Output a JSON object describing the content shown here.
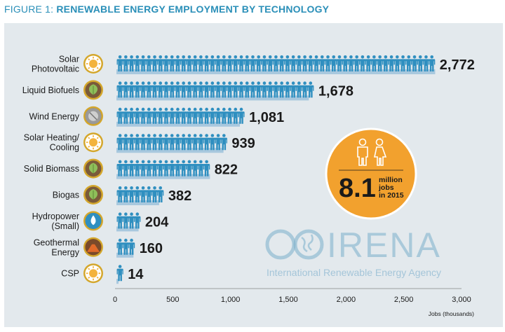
{
  "figure": {
    "title_prefix": "FIGURE 1:",
    "title_main": "RENEWABLE ENERGY EMPLOYMENT BY TECHNOLOGY"
  },
  "chart_data": {
    "type": "bar",
    "orientation": "horizontal",
    "title": "RENEWABLE ENERGY EMPLOYMENT BY TECHNOLOGY",
    "categories": [
      [
        "Solar",
        "Photovoltaic"
      ],
      [
        "Liquid Biofuels"
      ],
      [
        "Wind Energy"
      ],
      [
        "Solar Heating/",
        "Cooling"
      ],
      [
        "Solid Biomass"
      ],
      [
        "Biogas"
      ],
      [
        "Hydropower",
        "(Small)"
      ],
      [
        "Geothermal",
        "Energy"
      ],
      [
        "CSP"
      ]
    ],
    "icons": [
      "sun-icon",
      "leaf-icon",
      "wind-turbine-icon",
      "sun-icon",
      "leaf-icon",
      "leaf-icon",
      "water-drop-icon",
      "volcano-icon",
      "sun-icon"
    ],
    "values": [
      2772,
      1678,
      1081,
      939,
      822,
      382,
      204,
      160,
      14
    ],
    "value_labels": [
      "2,772",
      "1,678",
      "1,081",
      "939",
      "822",
      "382",
      "204",
      "160",
      "14"
    ],
    "xlim": [
      0,
      3000
    ],
    "xticks": [
      0,
      500,
      1000,
      1500,
      2000,
      2500,
      3000
    ],
    "xtick_labels": [
      "0",
      "500",
      "1,000",
      "1,500",
      "2,000",
      "2,500",
      "3,000"
    ],
    "xlabel": "Jobs (thousands)",
    "grid": false,
    "unit_per_figure": 50
  },
  "badge": {
    "big": "8.1",
    "line1": "million",
    "line2": "jobs",
    "line3": "in 2015"
  },
  "watermark": {
    "name": "IRENA",
    "subtitle": "International Renewable Energy Agency"
  },
  "colors": {
    "panel": "#e3e9ed",
    "person": "#2f8fc0",
    "bar_shadow": "#a8c8de",
    "badge_fill": "#f2a12e",
    "badge_ring": "#ffffff",
    "icon_ring": "#d4a72c",
    "title": "#2a8fb8"
  }
}
